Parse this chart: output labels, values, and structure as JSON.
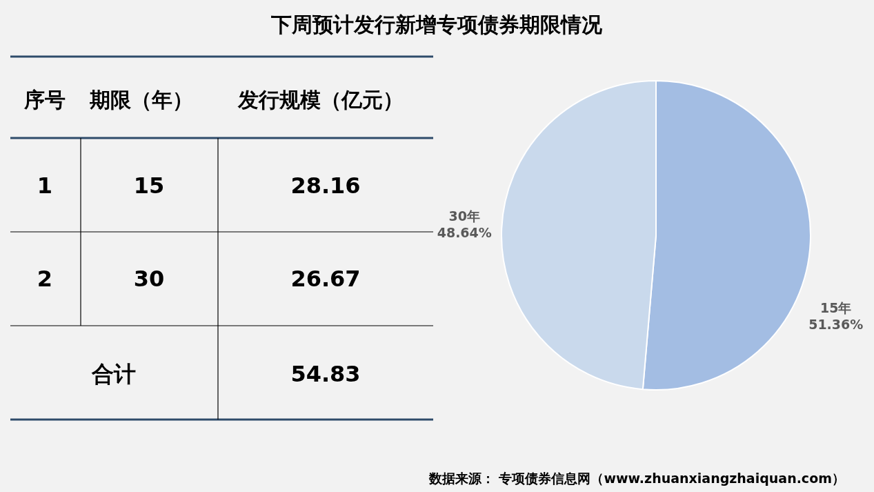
{
  "chart_data": [
    {
      "type": "other",
      "title": "下周预计发行新增专项债券期限情况",
      "annotations": [
        "序号",
        "期限（年）",
        "发行规模（亿元）",
        "1",
        "15",
        "28.16",
        "2",
        "30",
        "26.67",
        "合计",
        "54.83"
      ]
    },
    {
      "type": "pie",
      "categories": [
        "15年",
        "30年"
      ],
      "values": [
        51.36,
        48.64
      ],
      "colors": [
        "#a3bde3",
        "#c9d9ec"
      ],
      "value_labels": [
        "51.36%",
        "48.64%"
      ],
      "annotations": [
        "数据来源： 专项债券信息网（www.zhuanxiangzhaiquan.com）"
      ]
    }
  ]
}
